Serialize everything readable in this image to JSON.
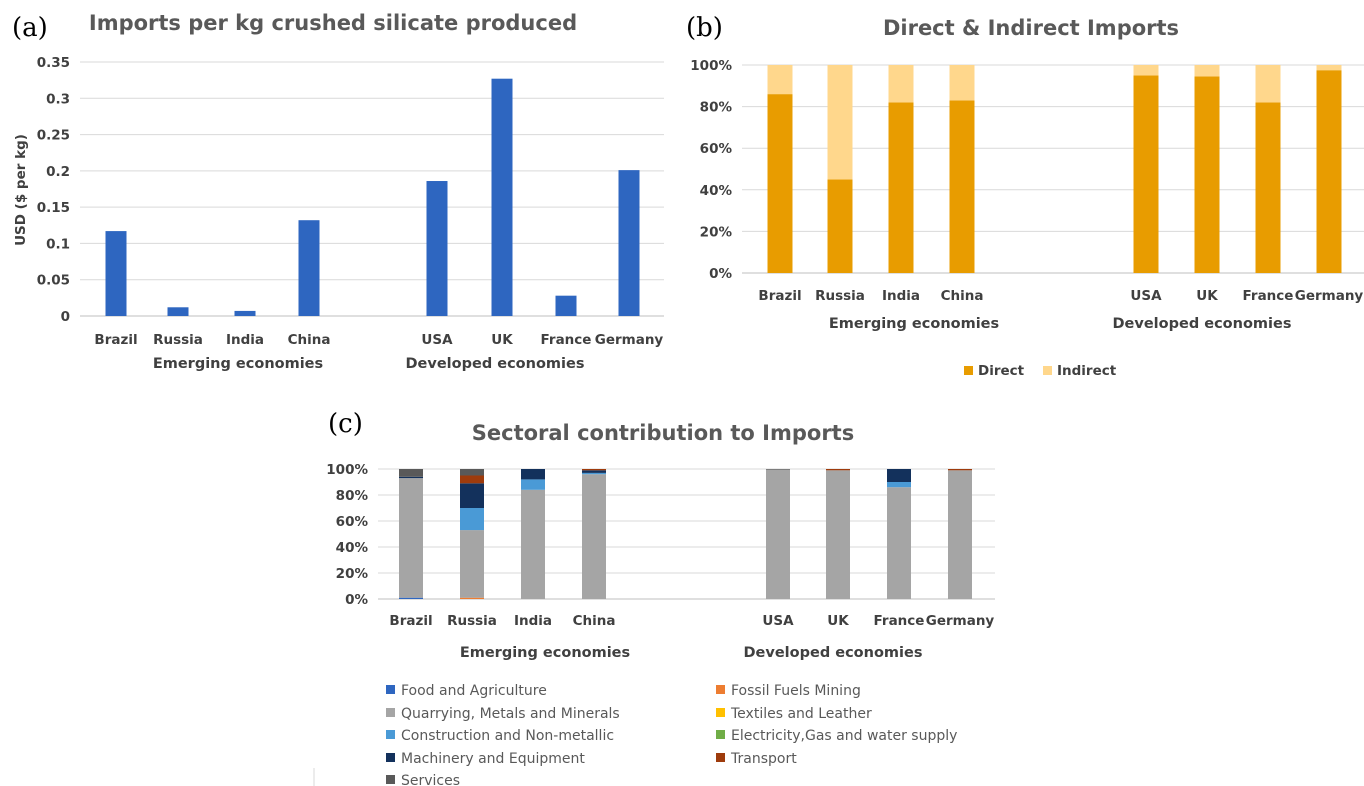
{
  "panels": [
    {
      "tag": "(a)"
    },
    {
      "tag": "(b)"
    },
    {
      "tag": "(c)"
    }
  ],
  "chart_data": [
    {
      "type": "bar",
      "title": "Imports per kg crushed silicate produced",
      "ylabel": "USD ($ per kg)",
      "xlabel": "",
      "ylim": [
        0,
        0.35
      ],
      "yticks": [
        "0",
        "0.05",
        "0.1",
        "0.15",
        "0.2",
        "0.25",
        "0.3",
        "0.35"
      ],
      "ytick_values": [
        0,
        0.05,
        0.1,
        0.15,
        0.2,
        0.25,
        0.3,
        0.35
      ],
      "grid": true,
      "color": "#2e66c0",
      "groups": [
        {
          "name": "Emerging economies",
          "categories": [
            "Brazil",
            "Russia",
            "India",
            "China"
          ],
          "values": [
            0.117,
            0.012,
            0.007,
            0.132
          ]
        },
        {
          "name": "Developed economies",
          "categories": [
            "USA",
            "UK",
            "France",
            "Germany"
          ],
          "values": [
            0.186,
            0.327,
            0.028,
            0.201
          ]
        }
      ]
    },
    {
      "type": "bar",
      "stacked": true,
      "title": "Direct & Indirect Imports",
      "ylim": [
        0,
        100
      ],
      "yticks": [
        "0%",
        "20%",
        "40%",
        "60%",
        "80%",
        "100%"
      ],
      "ytick_values": [
        0,
        20,
        40,
        60,
        80,
        100
      ],
      "grid": true,
      "legend_position": "bottom",
      "series": [
        {
          "name": "Direct",
          "color": "#e89c00"
        },
        {
          "name": "Indirect",
          "color": "#ffd78c"
        }
      ],
      "groups": [
        {
          "name": "Emerging economies",
          "categories": [
            "Brazil",
            "Russia",
            "India",
            "China"
          ],
          "values": [
            [
              86,
              14
            ],
            [
              45,
              55
            ],
            [
              82,
              18
            ],
            [
              83,
              17
            ]
          ]
        },
        {
          "name": "Developed economies",
          "categories": [
            "USA",
            "UK",
            "France",
            "Germany"
          ],
          "values": [
            [
              95,
              5
            ],
            [
              94.5,
              5.5
            ],
            [
              82,
              18
            ],
            [
              97.5,
              2.5
            ]
          ]
        }
      ]
    },
    {
      "type": "bar",
      "stacked": true,
      "title": "Sectoral contribution  to Imports",
      "ylim": [
        0,
        100
      ],
      "yticks": [
        "0%",
        "20%",
        "40%",
        "60%",
        "80%",
        "100%"
      ],
      "ytick_values": [
        0,
        20,
        40,
        60,
        80,
        100
      ],
      "grid": true,
      "legend_position": "bottom",
      "series": [
        {
          "name": "Food and Agriculture",
          "color": "#2e66c0"
        },
        {
          "name": "Fossil Fuels Mining",
          "color": "#ed7d31"
        },
        {
          "name": "Quarrying, Metals and Minerals",
          "color": "#a5a5a5"
        },
        {
          "name": "Textiles and Leather",
          "color": "#ffc000"
        },
        {
          "name": "Construction and Non-metallic",
          "color": "#4a9ad6"
        },
        {
          "name": "Electricity,Gas and water supply",
          "color": "#70ad47"
        },
        {
          "name": "Machinery and Equipment",
          "color": "#13315c"
        },
        {
          "name": "Transport",
          "color": "#9e3b0c"
        },
        {
          "name": "Services",
          "color": "#595959"
        }
      ],
      "groups": [
        {
          "name": "Emerging economies",
          "categories": [
            "Brazil",
            "Russia",
            "India",
            "China"
          ],
          "values": [
            [
              1,
              0,
              92,
              0,
              0,
              0,
              1,
              0,
              6
            ],
            [
              0,
              1,
              52,
              0,
              17,
              0,
              19,
              6,
              5
            ],
            [
              0,
              0,
              84,
              0,
              8,
              0,
              8,
              0,
              0
            ],
            [
              0,
              0,
              96,
              0,
              1,
              0,
              2,
              1,
              0
            ]
          ]
        },
        {
          "name": "Developed economies",
          "categories": [
            "USA",
            "UK",
            "France",
            "Germany"
          ],
          "values": [
            [
              0,
              0,
              99.5,
              0,
              0,
              0,
              0,
              0,
              0.5
            ],
            [
              0,
              0,
              99,
              0,
              0,
              0,
              0,
              1,
              0
            ],
            [
              0,
              0,
              86,
              0,
              4,
              0,
              10,
              0,
              0
            ],
            [
              0,
              0,
              99,
              0,
              0,
              0,
              0,
              1,
              0
            ]
          ]
        }
      ]
    }
  ]
}
